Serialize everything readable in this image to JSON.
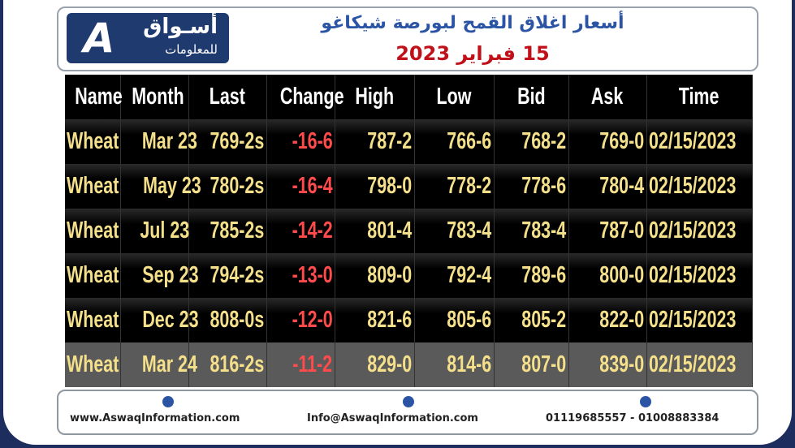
{
  "header": {
    "logo_main": "أسـواق",
    "logo_sub": "للمعلومات",
    "title": "أسعار اغلاق القمح لبورصة شيكاغو",
    "date": "15 فبراير 2023"
  },
  "table": {
    "columns": [
      "Name",
      "Month",
      "Last",
      "Change",
      "High",
      "Low",
      "Bid",
      "Ask",
      "Time"
    ],
    "rows": [
      [
        "Wheat",
        "Mar 23",
        "769-2s",
        "-16-6",
        "787-2",
        "766-6",
        "768-2",
        "769-0",
        "02/15/2023"
      ],
      [
        "Wheat",
        "May 23",
        "780-2s",
        "-16-4",
        "798-0",
        "778-2",
        "778-6",
        "780-4",
        "02/15/2023"
      ],
      [
        "Wheat",
        "Jul 23",
        "785-2s",
        "-14-2",
        "801-4",
        "783-4",
        "783-4",
        "787-0",
        "02/15/2023"
      ],
      [
        "Wheat",
        "Sep 23",
        "794-2s",
        "-13-0",
        "809-0",
        "792-4",
        "789-6",
        "800-0",
        "02/15/2023"
      ],
      [
        "Wheat",
        "Dec 23",
        "808-0s",
        "-12-0",
        "821-6",
        "805-6",
        "805-2",
        "822-0",
        "02/15/2023"
      ],
      [
        "Wheat",
        "Mar 24",
        "816-2s",
        "-11-2",
        "829-0",
        "814-6",
        "807-0",
        "839-0",
        "02/15/2023"
      ]
    ]
  },
  "footer": {
    "website": "www.AswaqInformation.com",
    "email": "Info@AswaqInformation.com",
    "phones": "01119685557 - 01008883384"
  }
}
